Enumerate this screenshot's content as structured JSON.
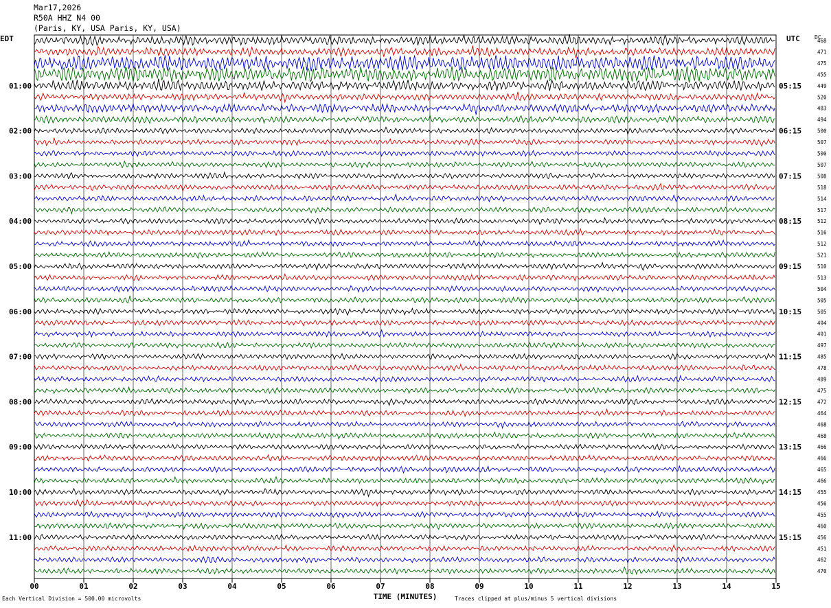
{
  "header": {
    "date": "Mar17,2026",
    "station": "R50A HHZ N4 00",
    "location": "(Paris, KY, USA Paris, KY, USA)"
  },
  "left_timezone": "EDT",
  "right_timezone": "UTC",
  "dc_label": "DC",
  "footer": {
    "scale": "Each Vertical Division =  500.00 microvolts",
    "clip": "Traces clipped at plus/minus 5 vertical divisions"
  },
  "colors": {
    "trace_cycle": [
      "#000000",
      "#cc0000",
      "#0000cc",
      "#006600"
    ],
    "grid": "#000000"
  },
  "chart_data": {
    "type": "line",
    "xlabel": "TIME (MINUTES)",
    "xlim": [
      0,
      15
    ],
    "x_ticks": [
      "00",
      "01",
      "02",
      "03",
      "04",
      "05",
      "06",
      "07",
      "08",
      "09",
      "10",
      "11",
      "12",
      "13",
      "14",
      "15"
    ],
    "rows_per_hour": 4,
    "left_hour_labels": [
      "01:00",
      "02:00",
      "03:00",
      "04:00",
      "05:00",
      "06:00",
      "07:00",
      "08:00",
      "09:00",
      "10:00",
      "11:00"
    ],
    "right_hour_labels": [
      "05:15",
      "06:15",
      "07:15",
      "08:15",
      "09:15",
      "10:15",
      "11:15",
      "12:15",
      "13:15",
      "14:15",
      "15:15"
    ],
    "dc_offsets": [
      "468",
      "471",
      "475",
      "455",
      "449",
      "520",
      "483",
      "494",
      "500",
      "507",
      "500",
      "507",
      "508",
      "518",
      "514",
      "517",
      "512",
      "516",
      "512",
      "521",
      "510",
      "513",
      "504",
      "505",
      "505",
      "494",
      "491",
      "497",
      "485",
      "478",
      "489",
      "475",
      "472",
      "464",
      "468",
      "468",
      "466",
      "466",
      "465",
      "466",
      "455",
      "456",
      "455",
      "460",
      "456",
      "451",
      "462",
      "470"
    ]
  }
}
